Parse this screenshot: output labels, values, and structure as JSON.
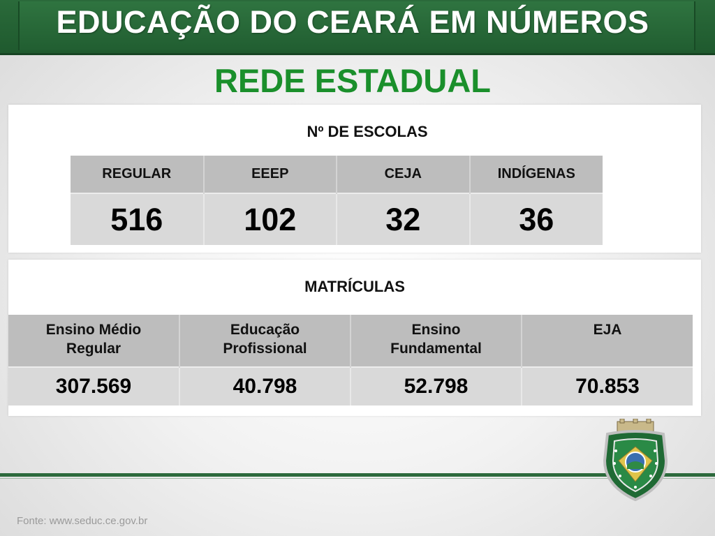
{
  "header": {
    "title": "EDUCAÇÃO DO CEARÁ EM NÚMEROS"
  },
  "subtitle": "REDE ESTADUAL",
  "schools": {
    "title": "Nº DE ESCOLAS",
    "columns": [
      "REGULAR",
      "EEEP",
      "CEJA",
      "INDÍGENAS"
    ],
    "values": [
      "516",
      "102",
      "32",
      "36"
    ]
  },
  "enrollments": {
    "title": "MATRÍCULAS",
    "columns": [
      [
        "Ensino Médio",
        "Regular"
      ],
      [
        "Educação",
        "Profissional"
      ],
      [
        "Ensino",
        "Fundamental"
      ],
      [
        "EJA",
        ""
      ]
    ],
    "values": [
      "307.569",
      "40.798",
      "52.798",
      "70.853"
    ]
  },
  "footer": {
    "source": "Fonte: www.seduc.ce.gov.br"
  },
  "colors": {
    "brand_green": "#215e31",
    "subtitle_green": "#1a8f2b",
    "header_cell": "#bdbdbd",
    "value_cell": "#d9d9d9"
  },
  "icons": {
    "crest": "ceara-state-crest-icon"
  }
}
